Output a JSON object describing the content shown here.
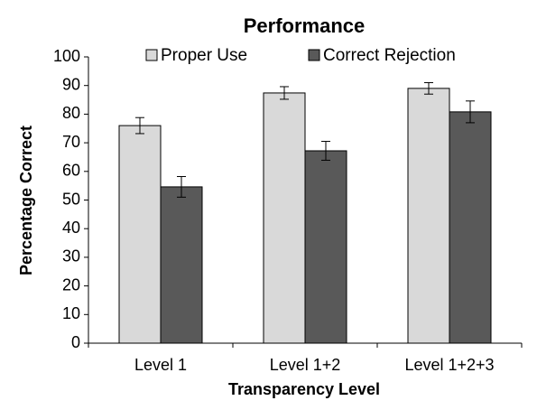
{
  "chart_data": {
    "type": "bar",
    "title": "Performance",
    "xlabel": "Transparency Level",
    "ylabel": "Percentage Correct",
    "categories": [
      "Level 1",
      "Level 1+2",
      "Level 1+2+3"
    ],
    "series": [
      {
        "name": "Proper Use",
        "color": "#d9d9d9",
        "values": [
          76,
          87.4,
          89
        ],
        "errors": [
          2.8,
          2.2,
          2
        ]
      },
      {
        "name": "Correct Rejection",
        "color": "#595959",
        "values": [
          54.6,
          67.2,
          80.8
        ],
        "errors": [
          3.6,
          3.3,
          3.8
        ]
      }
    ],
    "ylim": [
      0,
      100
    ],
    "yticks": [
      0,
      10,
      20,
      30,
      40,
      50,
      60,
      70,
      80,
      90,
      100
    ],
    "grid": false
  }
}
